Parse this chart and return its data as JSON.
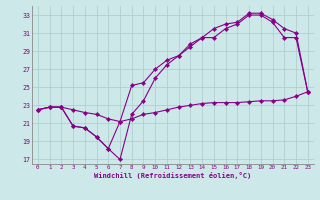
{
  "bg_color": "#cce8e8",
  "grid_color": "#aacccc",
  "line_color": "#880088",
  "xlim": [
    -0.5,
    23.5
  ],
  "ylim": [
    16.5,
    34.0
  ],
  "xticks": [
    0,
    1,
    2,
    3,
    4,
    5,
    6,
    7,
    8,
    9,
    10,
    11,
    12,
    13,
    14,
    15,
    16,
    17,
    18,
    19,
    20,
    21,
    22,
    23
  ],
  "yticks": [
    17,
    19,
    21,
    23,
    25,
    27,
    29,
    31,
    33
  ],
  "xlabel": "Windchill (Refroidissement éolien,°C)",
  "line1_x": [
    0,
    1,
    2,
    3,
    4,
    5,
    6,
    7,
    8,
    9,
    10,
    11,
    12,
    13,
    14,
    15,
    16,
    17,
    18,
    19,
    20,
    21,
    22,
    23
  ],
  "line1_y": [
    22.5,
    22.8,
    22.8,
    20.7,
    20.5,
    19.5,
    18.2,
    21.2,
    25.2,
    25.5,
    27.0,
    28.0,
    28.5,
    29.5,
    30.5,
    30.5,
    31.5,
    32.0,
    33.0,
    33.0,
    32.2,
    30.5,
    30.5,
    24.5
  ],
  "line2_x": [
    0,
    1,
    2,
    3,
    4,
    5,
    6,
    7,
    8,
    9,
    10,
    11,
    12,
    13,
    14,
    15,
    16,
    17,
    18,
    19,
    20,
    21,
    22,
    23
  ],
  "line2_y": [
    22.5,
    22.8,
    22.8,
    20.7,
    20.5,
    19.5,
    18.2,
    17.0,
    22.0,
    23.5,
    26.0,
    27.5,
    28.5,
    29.8,
    30.5,
    31.5,
    32.0,
    32.2,
    33.2,
    33.2,
    32.5,
    31.5,
    31.0,
    24.5
  ],
  "line3_x": [
    0,
    1,
    2,
    3,
    4,
    5,
    6,
    7,
    8,
    9,
    10,
    11,
    12,
    13,
    14,
    15,
    16,
    17,
    18,
    19,
    20,
    21,
    22,
    23
  ],
  "line3_y": [
    22.5,
    22.8,
    22.8,
    22.5,
    22.2,
    22.0,
    21.5,
    21.2,
    21.5,
    22.0,
    22.2,
    22.5,
    22.8,
    23.0,
    23.2,
    23.3,
    23.3,
    23.3,
    23.4,
    23.5,
    23.5,
    23.6,
    24.0,
    24.5
  ]
}
